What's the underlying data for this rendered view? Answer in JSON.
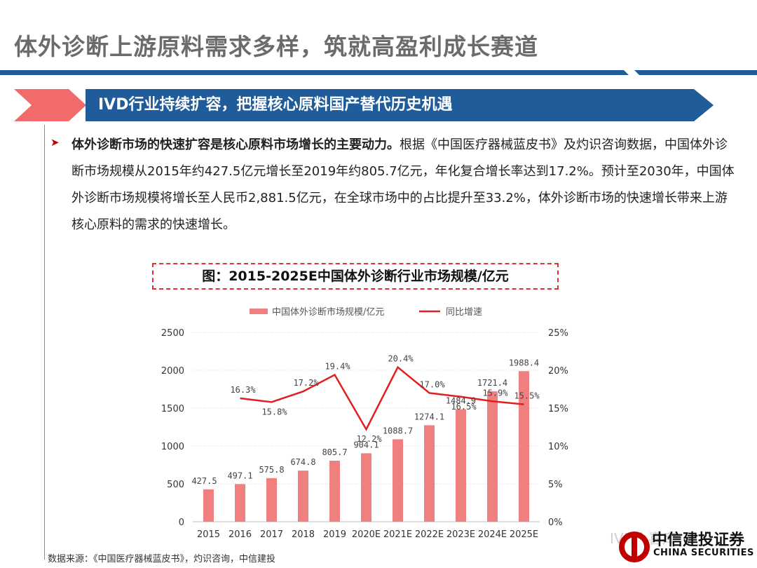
{
  "header": {
    "title": "体外诊断上游原料需求多样，筑就高盈利成长赛道",
    "banner": "IVD行业持续扩容，把握核心原料国产替代历史机遇"
  },
  "body": {
    "bold": "体外诊断市场的快速扩容是核心原料市场增长的主要动力。",
    "text": "根据《中国医疗器械蓝皮书》及灼识咨询数据，中国体外诊断市场规模从2015年约427.5亿元增长至2019年约805.7亿元，年化复合增长率达到17.2%。预计至2030年，中国体外诊断市场规模将增长至人民币2,881.5亿元，在全球市场中的占比提升至33.2%，体外诊断市场的快速增长带来上游核心原料的需求的快速增长。"
  },
  "chart_title": "图：2015-2025E中国体外诊断行业市场规模/亿元",
  "source": "数据来源：《中国医疗器械蓝皮书》，灼识咨询，中信建投",
  "watermark": "IVD小喜库",
  "logo": {
    "name": "中信建投证券",
    "en": "CHINA SECURITIES"
  },
  "colors": {
    "bar": "#f08080",
    "line": "#e02020",
    "brand": "#1f5c99",
    "accent": "#f26b6b"
  },
  "chart_data": {
    "type": "bar",
    "categories": [
      "2015",
      "2016",
      "2017",
      "2018",
      "2019",
      "2020E",
      "2021E",
      "2022E",
      "2023E",
      "2024E",
      "2025E"
    ],
    "series": [
      {
        "name": "中国体外诊断市场规模/亿元",
        "type": "bar",
        "axis": "left",
        "values": [
          427.5,
          497.1,
          575.8,
          674.8,
          805.7,
          904.1,
          1088.7,
          1274.1,
          1484.9,
          1721.4,
          1988.4
        ],
        "labels": [
          "427.5",
          "497.1",
          "575.8",
          "674.8",
          "805.7",
          "904.1",
          "1088.7",
          "1274.1",
          "1484.9",
          "1721.4",
          "1988.4"
        ]
      },
      {
        "name": "同比增速",
        "type": "line",
        "axis": "right",
        "values": [
          null,
          16.3,
          15.8,
          17.2,
          19.4,
          12.2,
          20.4,
          17.0,
          16.5,
          15.9,
          15.5
        ],
        "labels": [
          null,
          "16.3%",
          "15.8%",
          "17.2%",
          "19.4%",
          "12.2%",
          "20.4%",
          "17.0%",
          "16.5%",
          "15.9%",
          "15.5%"
        ]
      }
    ],
    "y_left": {
      "min": 0,
      "max": 2500,
      "ticks": [
        "0",
        "500",
        "1000",
        "1500",
        "2000",
        "2500"
      ]
    },
    "y_right": {
      "min": 0,
      "max": 25,
      "ticks": [
        "0%",
        "5%",
        "10%",
        "15%",
        "20%",
        "25%"
      ]
    },
    "grid": true,
    "legend": "top-center"
  }
}
